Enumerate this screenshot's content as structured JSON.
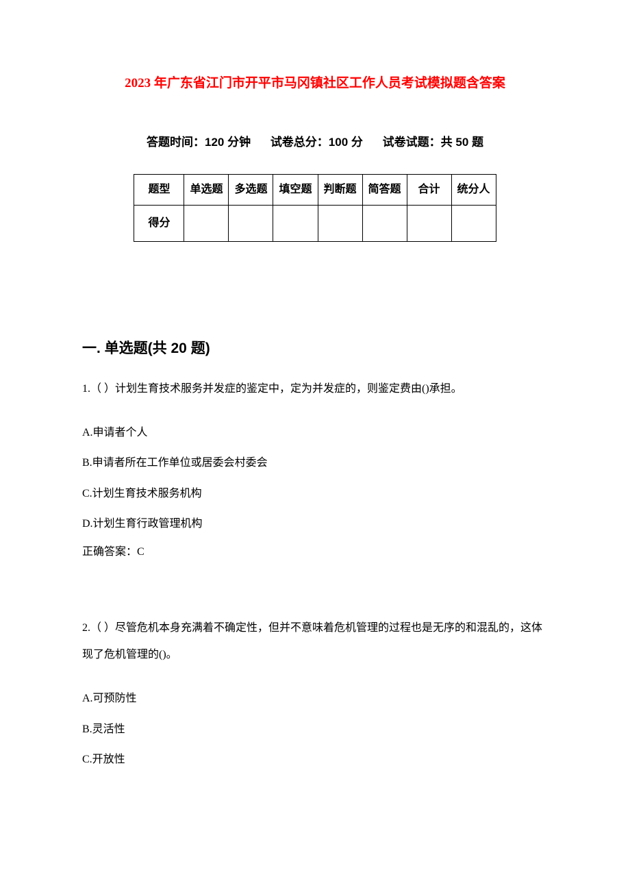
{
  "document": {
    "title": "2023 年广东省江门市开平市马冈镇社区工作人员考试模拟题含答案",
    "title_color": "#ff0000",
    "meta": {
      "time_label": "答题时间：120 分钟",
      "total_label": "试卷总分：100 分",
      "count_label": "试卷试题：共 50 题"
    },
    "score_table": {
      "header_row": [
        "题型",
        "单选题",
        "多选题",
        "填空题",
        "判断题",
        "简答题",
        "合计",
        "统分人"
      ],
      "score_row_label": "得分",
      "score_row_cells": [
        "",
        "",
        "",
        "",
        "",
        "",
        ""
      ]
    },
    "section1": {
      "heading": "一. 单选题(共 20 题)",
      "questions": [
        {
          "stem": "1.（ ）计划生育技术服务并发症的鉴定中，定为并发症的，则鉴定费由()承担。",
          "options": [
            "A.申请者个人",
            "B.申请者所在工作单位或居委会村委会",
            "C.计划生育技术服务机构",
            "D.计划生育行政管理机构"
          ],
          "answer": "正确答案：C"
        },
        {
          "stem": "2.（ ）尽管危机本身充满着不确定性，但并不意味着危机管理的过程也是无序的和混乱的，这体现了危机管理的()。",
          "options": [
            "A.可预防性",
            "B.灵活性",
            "C.开放性"
          ],
          "answer": ""
        }
      ]
    },
    "colors": {
      "text": "#000000",
      "background": "#ffffff",
      "title": "#ff0000",
      "table_border": "#000000"
    },
    "fonts": {
      "body_family": "SimSun",
      "heading_family": "SimHei",
      "title_size_pt": 14,
      "body_size_pt": 12,
      "section_heading_size_pt": 16
    }
  }
}
